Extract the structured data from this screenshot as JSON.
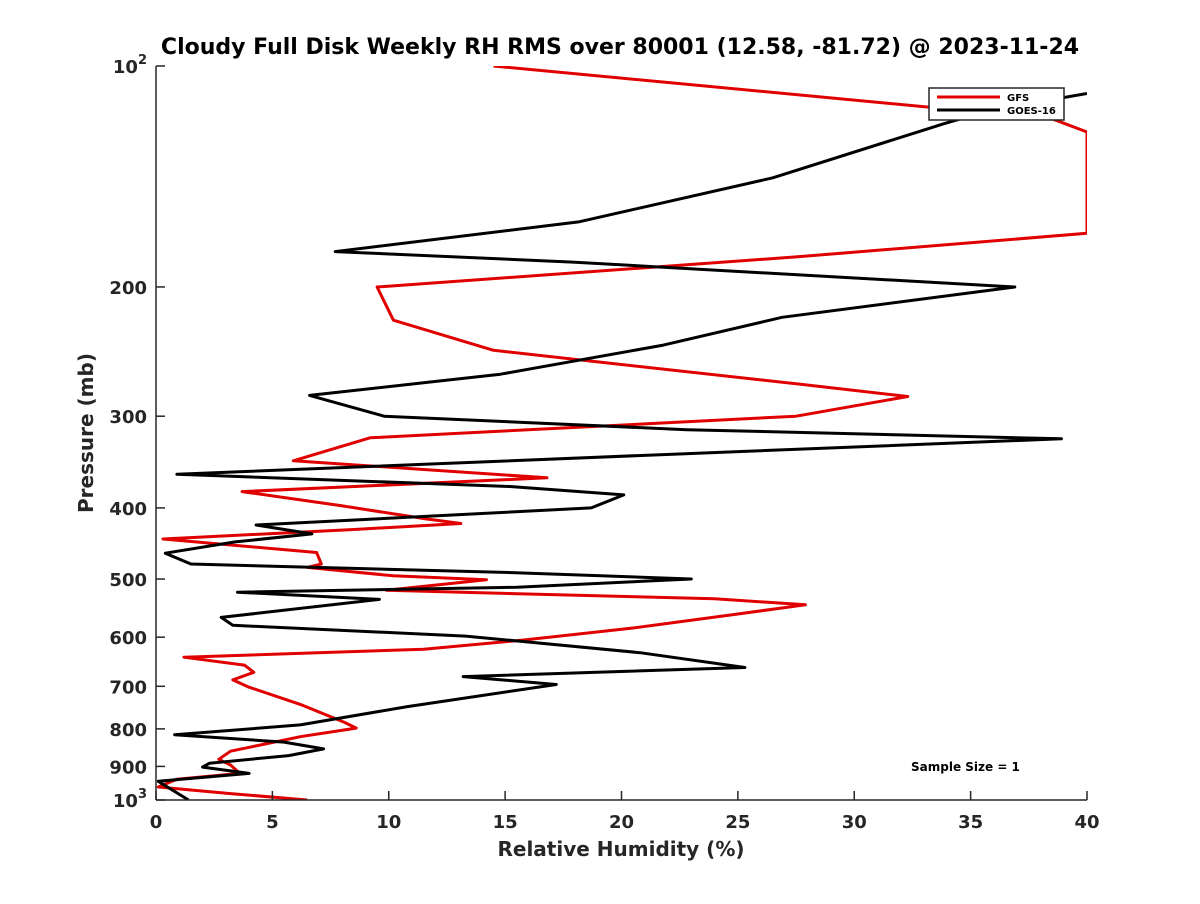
{
  "chart_data": {
    "type": "line",
    "title": "Cloudy Full Disk Weekly RH RMS over 80001 (12.58, -81.72) @ 2023-11-24",
    "xlabel": "Relative Humidity (%)",
    "ylabel": "Pressure (mb)",
    "xlim": [
      0,
      40
    ],
    "ylim": [
      100,
      1000
    ],
    "yscale": "log",
    "y_reversed": true,
    "grid": false,
    "legend_position": "top-right",
    "x_ticks": [
      0,
      5,
      10,
      15,
      20,
      25,
      30,
      35,
      40
    ],
    "x_tick_labels": [
      "0",
      "5",
      "10",
      "15",
      "20",
      "25",
      "30",
      "35",
      "40"
    ],
    "y_ticks": [
      100,
      200,
      300,
      400,
      500,
      600,
      700,
      800,
      900,
      1000
    ],
    "y_tick_labels": [
      {
        "base": "10",
        "sup": "2"
      },
      {
        "base": "200",
        "sup": ""
      },
      {
        "base": "300",
        "sup": ""
      },
      {
        "base": "400",
        "sup": ""
      },
      {
        "base": "500",
        "sup": ""
      },
      {
        "base": "600",
        "sup": ""
      },
      {
        "base": "700",
        "sup": ""
      },
      {
        "base": "800",
        "sup": ""
      },
      {
        "base": "900",
        "sup": ""
      },
      {
        "base": "10",
        "sup": "3"
      }
    ],
    "annotation": "Sample Size = 1",
    "series": [
      {
        "name": "GFS",
        "color": "#e00000",
        "points": [
          [
            14.5,
            100
          ],
          [
            38.5,
            118
          ],
          [
            40,
            123
          ],
          [
            40,
            169
          ],
          [
            27.5,
            182
          ],
          [
            9.5,
            200
          ],
          [
            10.2,
            222
          ],
          [
            14.5,
            244
          ],
          [
            27.5,
            271
          ],
          [
            32.3,
            282
          ],
          [
            27.5,
            300
          ],
          [
            9.2,
            321
          ],
          [
            5.9,
            345
          ],
          [
            16.8,
            364
          ],
          [
            3.7,
            380
          ],
          [
            7.9,
            397
          ],
          [
            11.6,
            414
          ],
          [
            13.1,
            420
          ],
          [
            8.5,
            428
          ],
          [
            0.3,
            441
          ],
          [
            6.9,
            460
          ],
          [
            7.1,
            477
          ],
          [
            6.5,
            482
          ],
          [
            10.2,
            495
          ],
          [
            14.2,
            501
          ],
          [
            9.9,
            518
          ],
          [
            24.0,
            532
          ],
          [
            27.9,
            542
          ],
          [
            24.8,
            559
          ],
          [
            20.5,
            583
          ],
          [
            15.7,
            606
          ],
          [
            11.5,
            623
          ],
          [
            1.2,
            639
          ],
          [
            3.8,
            655
          ],
          [
            4.2,
            670
          ],
          [
            3.3,
            686
          ],
          [
            4.0,
            702
          ],
          [
            6.2,
            741
          ],
          [
            8.1,
            784
          ],
          [
            8.6,
            798
          ],
          [
            6.2,
            820
          ],
          [
            3.2,
            858
          ],
          [
            2.7,
            880
          ],
          [
            3.2,
            896
          ],
          [
            3.6,
            920
          ],
          [
            0.9,
            937
          ],
          [
            0.1,
            960
          ],
          [
            3.2,
            980
          ],
          [
            6.5,
            1000
          ]
        ]
      },
      {
        "name": "GOES-16",
        "color": "#000000",
        "points": [
          [
            40,
            109
          ],
          [
            35.8,
            115
          ],
          [
            33.8,
            120
          ],
          [
            26.5,
            142
          ],
          [
            18.2,
            163
          ],
          [
            7.7,
            179
          ],
          [
            17.9,
            185
          ],
          [
            36.9,
            200
          ],
          [
            26.9,
            220
          ],
          [
            21.8,
            240
          ],
          [
            14.8,
            263
          ],
          [
            6.6,
            281
          ],
          [
            9.8,
            300
          ],
          [
            22.8,
            313
          ],
          [
            38.9,
            322
          ],
          [
            22.2,
            338
          ],
          [
            0.9,
            360
          ],
          [
            15.2,
            374
          ],
          [
            20.1,
            384
          ],
          [
            18.7,
            400
          ],
          [
            4.3,
            422
          ],
          [
            6.7,
            434
          ],
          [
            3.4,
            445
          ],
          [
            0.4,
            461
          ],
          [
            1.5,
            477
          ],
          [
            15.3,
            490
          ],
          [
            23.0,
            500
          ],
          [
            15.5,
            513
          ],
          [
            3.5,
            521
          ],
          [
            9.6,
            533
          ],
          [
            2.8,
            564
          ],
          [
            3.3,
            578
          ],
          [
            13.3,
            598
          ],
          [
            15.2,
            606
          ],
          [
            20.8,
            630
          ],
          [
            25.3,
            660
          ],
          [
            13.2,
            679
          ],
          [
            17.2,
            696
          ],
          [
            10.8,
            746
          ],
          [
            6.2,
            790
          ],
          [
            0.8,
            815
          ],
          [
            5.5,
            834
          ],
          [
            7.2,
            852
          ],
          [
            5.7,
            870
          ],
          [
            2.3,
            891
          ],
          [
            2.0,
            902
          ],
          [
            4.0,
            920
          ],
          [
            0.1,
            943
          ],
          [
            0.6,
            965
          ],
          [
            1.4,
            1000
          ]
        ]
      }
    ]
  }
}
